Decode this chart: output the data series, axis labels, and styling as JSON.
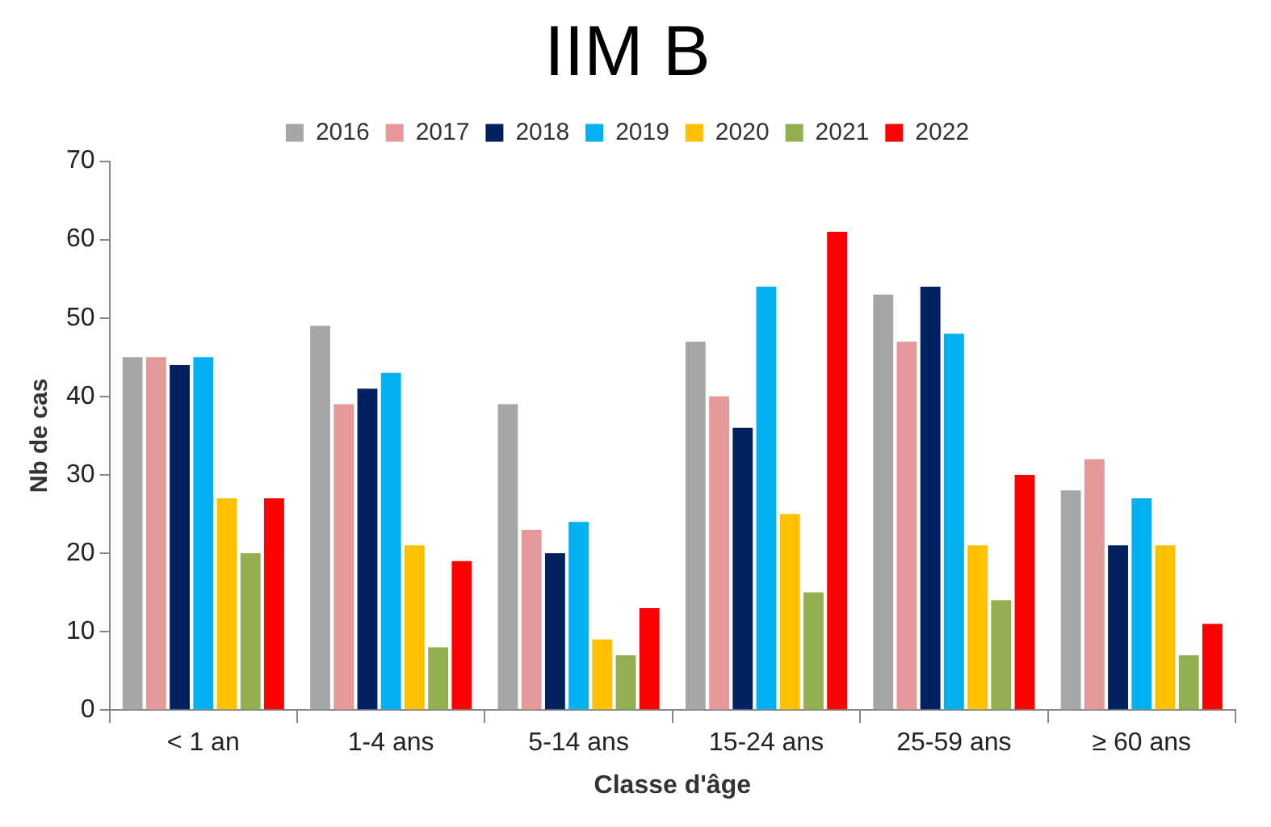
{
  "chart_data": {
    "type": "bar",
    "title": "IIM B",
    "xlabel": "Classe d'âge",
    "ylabel": "Nb de cas",
    "categories": [
      "< 1 an",
      "1-4 ans",
      "5-14 ans",
      "15-24 ans",
      "25-59 ans",
      "≥ 60 ans"
    ],
    "series": [
      {
        "name": "2016",
        "color": "#a6a6a6",
        "values": [
          45,
          49,
          39,
          47,
          53,
          28
        ]
      },
      {
        "name": "2017",
        "color": "#e6999b",
        "values": [
          45,
          39,
          23,
          40,
          47,
          32
        ]
      },
      {
        "name": "2018",
        "color": "#002060",
        "values": [
          44,
          41,
          20,
          36,
          54,
          21
        ]
      },
      {
        "name": "2019",
        "color": "#00b0f0",
        "values": [
          45,
          43,
          24,
          54,
          48,
          27
        ]
      },
      {
        "name": "2020",
        "color": "#ffc000",
        "values": [
          27,
          21,
          9,
          25,
          21,
          21
        ]
      },
      {
        "name": "2021",
        "color": "#92b050",
        "values": [
          20,
          8,
          7,
          15,
          14,
          7
        ]
      },
      {
        "name": "2022",
        "color": "#ff0000",
        "values": [
          27,
          19,
          13,
          61,
          30,
          11
        ]
      }
    ],
    "ylim": [
      0,
      70
    ],
    "yticks": [
      0,
      10,
      20,
      30,
      40,
      50,
      60,
      70
    ],
    "grid": false,
    "legend": "top"
  }
}
